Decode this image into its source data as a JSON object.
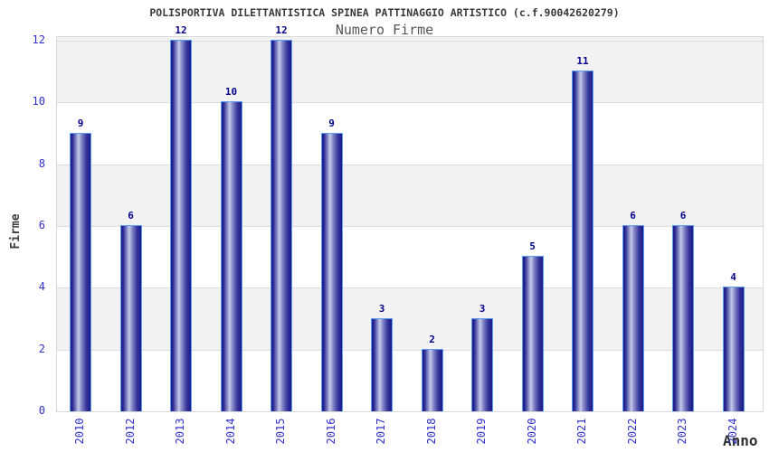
{
  "header": {
    "title": "POLISPORTIVA DILETTANTISTICA SPINEA PATTINAGGIO ARTISTICO (c.f.90042620279)"
  },
  "chart_data": {
    "type": "bar",
    "title": "Numero Firme",
    "categories": [
      "2010",
      "2012",
      "2013",
      "2014",
      "2015",
      "2016",
      "2017",
      "2018",
      "2019",
      "2020",
      "2021",
      "2022",
      "2023",
      "2024"
    ],
    "values": [
      9,
      6,
      12,
      10,
      12,
      9,
      3,
      2,
      3,
      5,
      11,
      6,
      6,
      4
    ],
    "xlabel": "Anno",
    "ylabel": "Firme",
    "ylim": [
      0,
      12
    ],
    "yticks": [
      0,
      2,
      4,
      6,
      8,
      10,
      12
    ],
    "bar_value_labels_visible": true,
    "legend": "none",
    "grid": "alternating horizontal bands every 2 units",
    "colors": {
      "bar_dark": "#1b1b88",
      "bar_light": "#c6cae9",
      "bar_border": "#5e9cf2",
      "value_label": "#00008b",
      "tick_label": "#3030cc",
      "axis_title": "#3c3c3c",
      "header_title": "#3a3a3a",
      "chart_title": "#555555",
      "band_fill": "#f2f2f2",
      "grid_line": "#dcdcdc",
      "plot_border": "#d8d8d8",
      "background": "#ffffff"
    }
  }
}
